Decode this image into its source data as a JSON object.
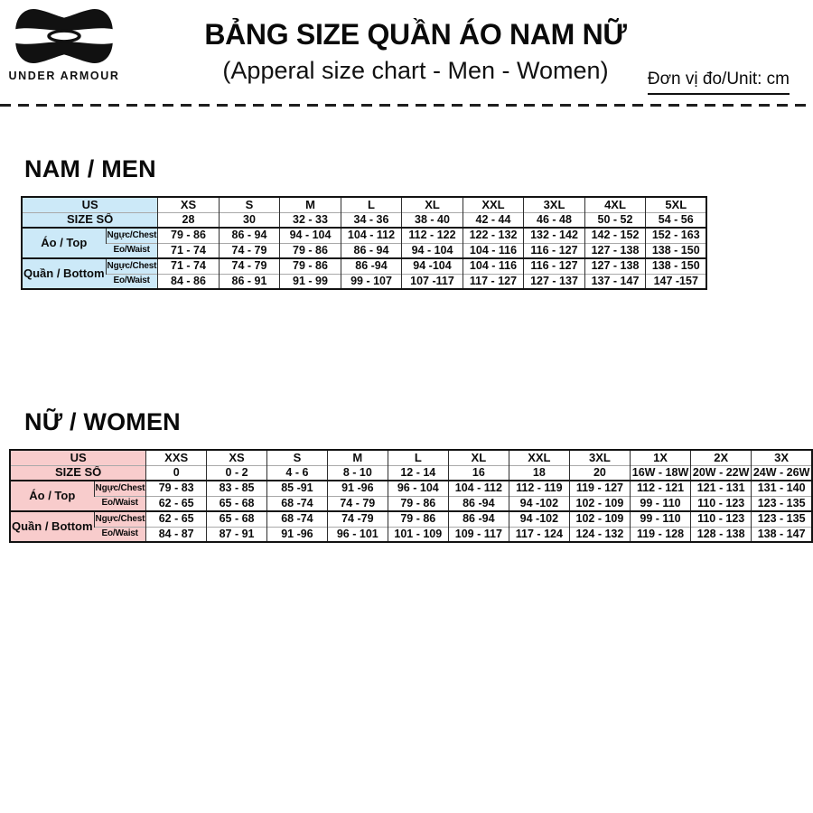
{
  "header": {
    "brand": "UNDER ARMOUR",
    "title": "BẢNG SIZE QUẦN ÁO NAM NỮ",
    "subtitle": "(Apperal size chart - Men - Women)",
    "unit": "Đơn vị đo/Unit: cm"
  },
  "tables": {
    "men": {
      "section_title": "NAM / MEN",
      "accent": "#cce9f8",
      "corner": {
        "us": "US",
        "size": "SIZE SỐ"
      },
      "sizes": [
        "XS",
        "S",
        "M",
        "L",
        "XL",
        "XXL",
        "3XL",
        "4XL",
        "5XL"
      ],
      "size_numbers": [
        "28",
        "30",
        "32 - 33",
        "34 - 36",
        "38 - 40",
        "42 - 44",
        "46 - 48",
        "50 - 52",
        "54 - 56"
      ],
      "groups": [
        {
          "label": "Áo / Top",
          "rows": [
            {
              "label": "Ngực/Chest",
              "values": [
                "79 - 86",
                "86 - 94",
                "94 - 104",
                "104 - 112",
                "112 - 122",
                "122 - 132",
                "132 - 142",
                "142 - 152",
                "152 - 163"
              ]
            },
            {
              "label": "Eo/Waist",
              "values": [
                "71 - 74",
                "74 - 79",
                "79 - 86",
                "86 - 94",
                "94 - 104",
                "104 - 116",
                "116 - 127",
                "127 - 138",
                "138 - 150"
              ]
            }
          ]
        },
        {
          "label": "Quần / Bottom",
          "rows": [
            {
              "label": "Ngực/Chest",
              "values": [
                "71 - 74",
                "74 - 79",
                "79 - 86",
                "86 -94",
                "94 -104",
                "104 - 116",
                "116 - 127",
                "127 - 138",
                "138 - 150"
              ]
            },
            {
              "label": "Eo/Waist",
              "values": [
                "84 - 86",
                "86 - 91",
                "91 - 99",
                "99 - 107",
                "107 -117",
                "117 - 127",
                "127 - 137",
                "137 - 147",
                "147 -157"
              ]
            }
          ]
        }
      ]
    },
    "women": {
      "section_title": "NỮ / WOMEN",
      "accent": "#f8cccc",
      "corner": {
        "us": "US",
        "size": "SIZE SỐ"
      },
      "sizes": [
        "XXS",
        "XS",
        "S",
        "M",
        "L",
        "XL",
        "XXL",
        "3XL",
        "1X",
        "2X",
        "3X"
      ],
      "size_numbers": [
        "0",
        "0 - 2",
        "4 - 6",
        "8 - 10",
        "12 - 14",
        "16",
        "18",
        "20",
        "16W - 18W",
        "20W - 22W",
        "24W - 26W"
      ],
      "groups": [
        {
          "label": "Áo / Top",
          "rows": [
            {
              "label": "Ngực/Chest",
              "values": [
                "79 - 83",
                "83 - 85",
                "85 -91",
                "91 -96",
                "96 - 104",
                "104 - 112",
                "112 - 119",
                "119 - 127",
                "112 - 121",
                "121 - 131",
                "131 - 140"
              ]
            },
            {
              "label": "Eo/Waist",
              "values": [
                "62 - 65",
                "65 - 68",
                "68 -74",
                "74 - 79",
                "79 - 86",
                "86 -94",
                "94 -102",
                "102 - 109",
                "99 - 110",
                "110 - 123",
                "123 - 135"
              ]
            }
          ]
        },
        {
          "label": "Quần / Bottom",
          "rows": [
            {
              "label": "Ngực/Chest",
              "values": [
                "62 - 65",
                "65 - 68",
                "68 -74",
                "74 -79",
                "79 - 86",
                "86 -94",
                "94 -102",
                "102 - 109",
                "99 - 110",
                "110 - 123",
                "123 - 135"
              ]
            },
            {
              "label": "Eo/Waist",
              "values": [
                "84 - 87",
                "87 - 91",
                "91 -96",
                "96 - 101",
                "101 - 109",
                "109 - 117",
                "117 - 124",
                "124 - 132",
                "119 - 128",
                "128 - 138",
                "138 - 147"
              ]
            }
          ]
        }
      ]
    }
  }
}
